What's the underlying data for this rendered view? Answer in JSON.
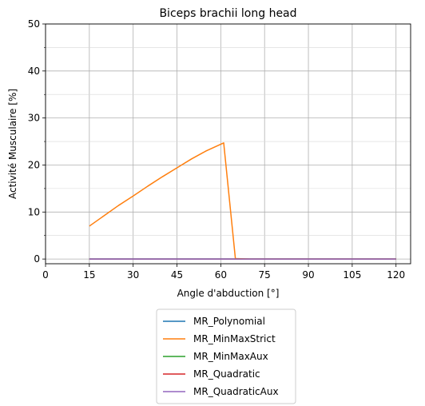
{
  "chart_data": {
    "type": "line",
    "title": "Biceps brachii long head",
    "xlabel": "Angle d'abduction [°]",
    "ylabel": "Activité Musculaire [%]",
    "xlim": [
      0,
      125
    ],
    "ylim": [
      -1,
      50
    ],
    "xticks": [
      0,
      15,
      30,
      45,
      60,
      75,
      90,
      105,
      120
    ],
    "xtick_labels": [
      "0",
      "15",
      "30",
      "45",
      "60",
      "75",
      "90",
      "105",
      "120"
    ],
    "yticks": [
      0,
      10,
      20,
      30,
      40,
      50
    ],
    "ytick_labels": [
      "0",
      "10",
      "20",
      "30",
      "40",
      "50"
    ],
    "y_minor_ticks": [
      5,
      15,
      25,
      35,
      45
    ],
    "grid": true,
    "legend_position": "below",
    "series": [
      {
        "name": "MR_Polynomial",
        "color": "#1f77b4",
        "x": [
          15,
          120
        ],
        "y": [
          0,
          0
        ]
      },
      {
        "name": "MR_MinMaxStrict",
        "color": "#ff7f0e",
        "x": [
          15,
          20,
          25,
          30,
          35,
          40,
          45,
          50,
          55,
          61,
          65,
          70,
          120
        ],
        "y": [
          7,
          9.2,
          11.4,
          13.4,
          15.5,
          17.5,
          19.4,
          21.3,
          23.0,
          24.7,
          0.1,
          0,
          0
        ]
      },
      {
        "name": "MR_MinMaxAux",
        "color": "#2ca02c",
        "x": [
          15,
          120
        ],
        "y": [
          0,
          0
        ]
      },
      {
        "name": "MR_Quadratic",
        "color": "#d62728",
        "x": [
          15,
          120
        ],
        "y": [
          0,
          0
        ]
      },
      {
        "name": "MR_QuadraticAux",
        "color": "#9467bd",
        "x": [
          15,
          120
        ],
        "y": [
          0,
          0
        ]
      }
    ]
  }
}
